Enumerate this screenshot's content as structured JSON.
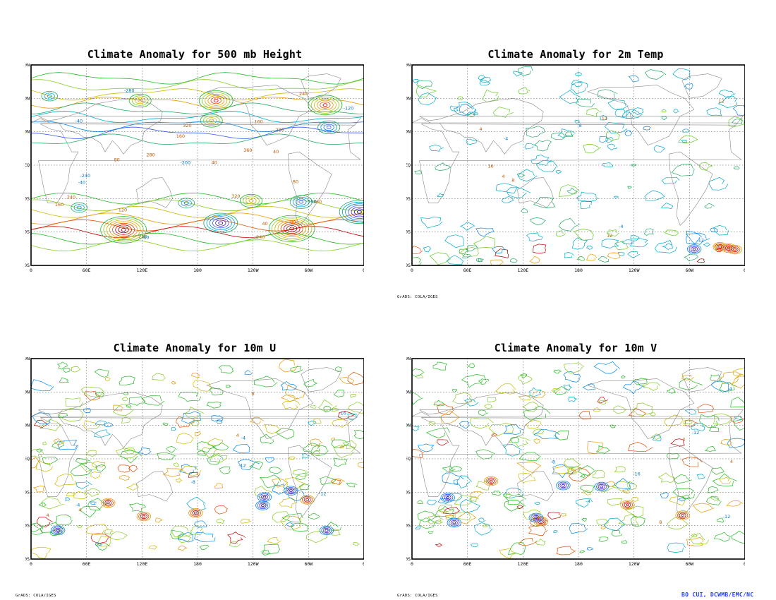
{
  "panels": [
    {
      "id": "height500",
      "title": "Climate Anomaly for 500 mb Height",
      "credit": "",
      "style": "height",
      "labels": [
        "40",
        "40",
        "80",
        "80",
        "120",
        "160",
        "160",
        "200",
        "240",
        "240",
        "280",
        "320",
        "360",
        "40",
        "80",
        "160",
        "240",
        "280",
        "320",
        "360",
        "-40",
        "-40",
        "-80",
        "-120",
        "-160",
        "-200",
        "-240",
        "-280"
      ]
    },
    {
      "id": "temp2m",
      "title": "Climate Anomaly for 2m Temp",
      "credit": "GrADS: COLA/IGES",
      "style": "temp",
      "labels": [
        "4",
        "4",
        "8",
        "12",
        "12",
        "12",
        "16",
        "-4",
        "-4",
        "-8",
        "-12"
      ]
    },
    {
      "id": "u10m",
      "title": "Climate Anomaly for 10m U",
      "credit": "GrADS: COLA/IGES",
      "style": "wind",
      "labels": [
        "4",
        "4",
        "4",
        "8",
        "-4",
        "-4",
        "-8",
        "-12",
        "-12",
        "-16"
      ]
    },
    {
      "id": "v10m",
      "title": "Climate Anomaly for 10m V",
      "credit": "GrADS: COLA/IGES",
      "style": "wind",
      "labels": [
        "4",
        "4",
        "8",
        "-4",
        "-4",
        "-8",
        "-12",
        "-12",
        "-16"
      ]
    }
  ],
  "axes": {
    "lat_labels": [
      "90N",
      "60N",
      "30N",
      "EQ",
      "30S",
      "60S",
      "90S"
    ],
    "lon_labels": [
      "0",
      "60E",
      "120E",
      "180",
      "120W",
      "60W",
      "0"
    ]
  },
  "colors": {
    "pos_ramp": [
      "#22bb22",
      "#88cc22",
      "#ccbb00",
      "#e89a00",
      "#e05000",
      "#cc0000",
      "#990000"
    ],
    "neg_ramp": [
      "#22aa66",
      "#00aacc",
      "#0088ee",
      "#3355ff",
      "#5522cc",
      "#2200aa"
    ],
    "coast": "#888888",
    "grid": "#444444",
    "brand": "#1e3cff"
  },
  "footer": {
    "brand": "BO CUI, DCWMB/EMC/NC"
  }
}
